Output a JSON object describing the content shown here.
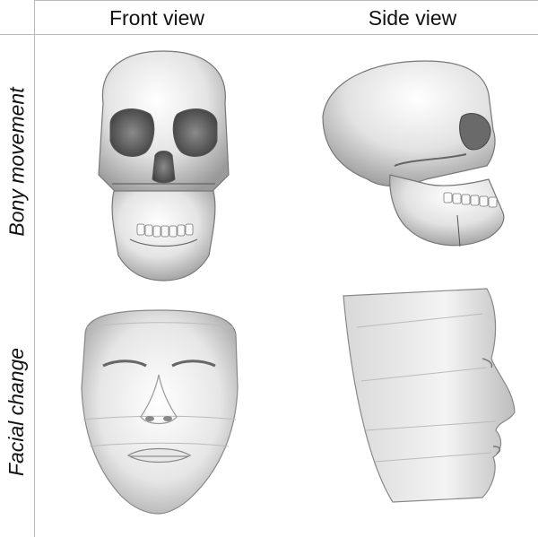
{
  "columns": [
    "Front view",
    "Side view"
  ],
  "rows": [
    "Bony movement",
    "Facial change"
  ],
  "panels": [
    {
      "row": "Bony movement",
      "column": "Front view",
      "subject": "skull-front"
    },
    {
      "row": "Bony movement",
      "column": "Side view",
      "subject": "skull-side"
    },
    {
      "row": "Facial change",
      "column": "Front view",
      "subject": "face-front"
    },
    {
      "row": "Facial change",
      "column": "Side view",
      "subject": "face-side"
    }
  ]
}
